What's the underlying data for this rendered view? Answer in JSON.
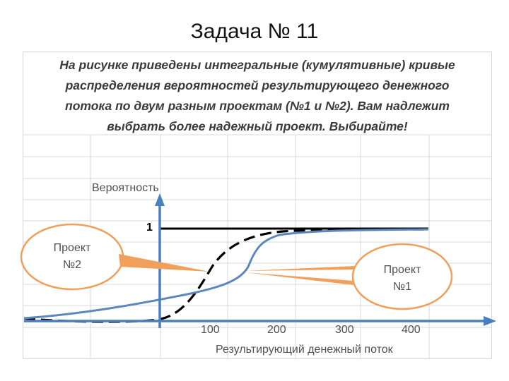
{
  "slide": {
    "title": "Задача № 11"
  },
  "task": {
    "lines": [
      "На рисунке приведены интегральные (кумулятивные) кривые",
      "распределения вероятностей результирующего денежного",
      "потока по двум разным проектам (№1 и №2). Вам надлежит",
      "выбрать более надежный проект. Выбирайте!"
    ]
  },
  "graph": {
    "y_label": "Вероятность",
    "x_label": "Результирующий денежный поток",
    "one_label": "1",
    "x_ticks": [
      "100",
      "200",
      "300",
      "400"
    ],
    "callout_left": {
      "line1": "Проект",
      "line2": "№2"
    },
    "callout_right": {
      "line1": "Проект",
      "line2": "№1"
    },
    "colors": {
      "axis": "#4a7fbe",
      "project1": "#5b87bd",
      "project2": "#000000",
      "callout": "#f0a05a",
      "grid": "#d9d9d9"
    }
  }
}
